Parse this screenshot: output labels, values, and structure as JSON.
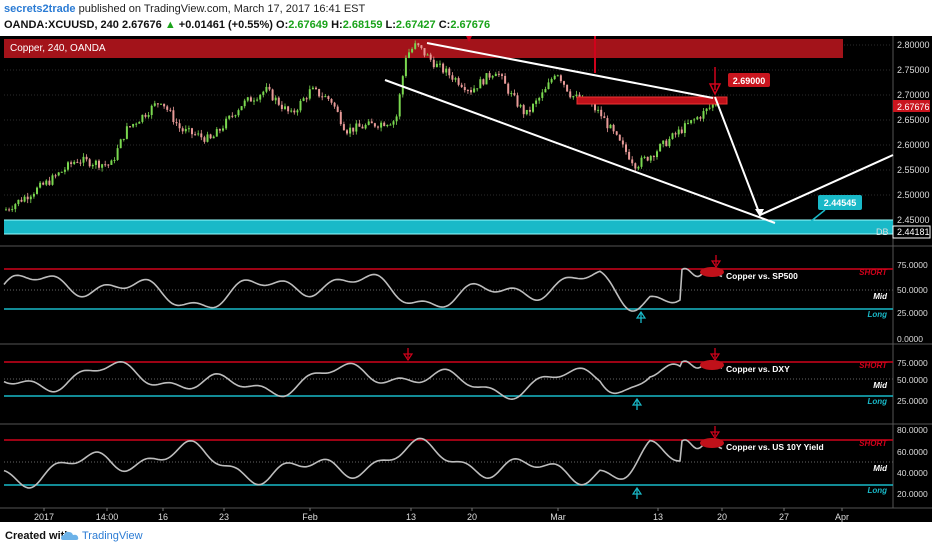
{
  "header": {
    "author": "secrets2trade",
    "published_text": "published on TradingView.com, March 17, 2017 16:41 EST",
    "symbol": "OANDA:XCUUSD, 240",
    "last": "2.67676",
    "change": "+0.01461 (+0.55%)",
    "ohlc": {
      "O_label": "O:",
      "O": "2.67649",
      "H_label": "H:",
      "H": "2.68159",
      "L_label": "L:",
      "L": "2.67427",
      "C_label": "C:",
      "C": "2.67676"
    }
  },
  "legend": {
    "main": "Copper, 240, OANDA"
  },
  "price_axis": {
    "ticks": [
      "2.80000",
      "2.75000",
      "2.70000",
      "2.65000",
      "2.60000",
      "2.55000",
      "2.50000",
      "2.45000"
    ],
    "current": "2.67676",
    "level_label": "2.44181",
    "marker_prefix": "DB"
  },
  "annotations": {
    "resistance_price": "2.69000",
    "target_price": "2.44545"
  },
  "panels": [
    {
      "title": "Copper vs. SP500",
      "ticks": [
        "75.0000",
        "50.0000",
        "25.0000",
        "0.0000"
      ],
      "short": "SHORT",
      "mid": "Mid",
      "long": "Long"
    },
    {
      "title": "Copper vs. DXY",
      "ticks": [
        "75.0000",
        "50.0000",
        "25.0000"
      ],
      "short": "SHORT",
      "mid": "Mid",
      "long": "Long"
    },
    {
      "title": "Copper vs. US 10Y Yield",
      "ticks": [
        "80.0000",
        "60.0000",
        "40.0000",
        "20.0000"
      ],
      "short": "SHORT",
      "mid": "Mid",
      "long": "Long"
    }
  ],
  "time_axis": [
    "2017",
    "14:00",
    "16",
    "23",
    "Feb",
    "13",
    "20",
    "Mar",
    "13",
    "20",
    "27",
    "Apr"
  ],
  "footer": {
    "created_with": "Created with",
    "brand": "TradingView"
  },
  "colors": {
    "bg": "#000000",
    "up": "#7ad84f",
    "down": "#e89a98",
    "red_zone": "#a3131a",
    "cyan": "#19b9c8",
    "trend": "#ffffff",
    "osc": "#bdbdbd",
    "red_line": "#d0021b"
  }
}
